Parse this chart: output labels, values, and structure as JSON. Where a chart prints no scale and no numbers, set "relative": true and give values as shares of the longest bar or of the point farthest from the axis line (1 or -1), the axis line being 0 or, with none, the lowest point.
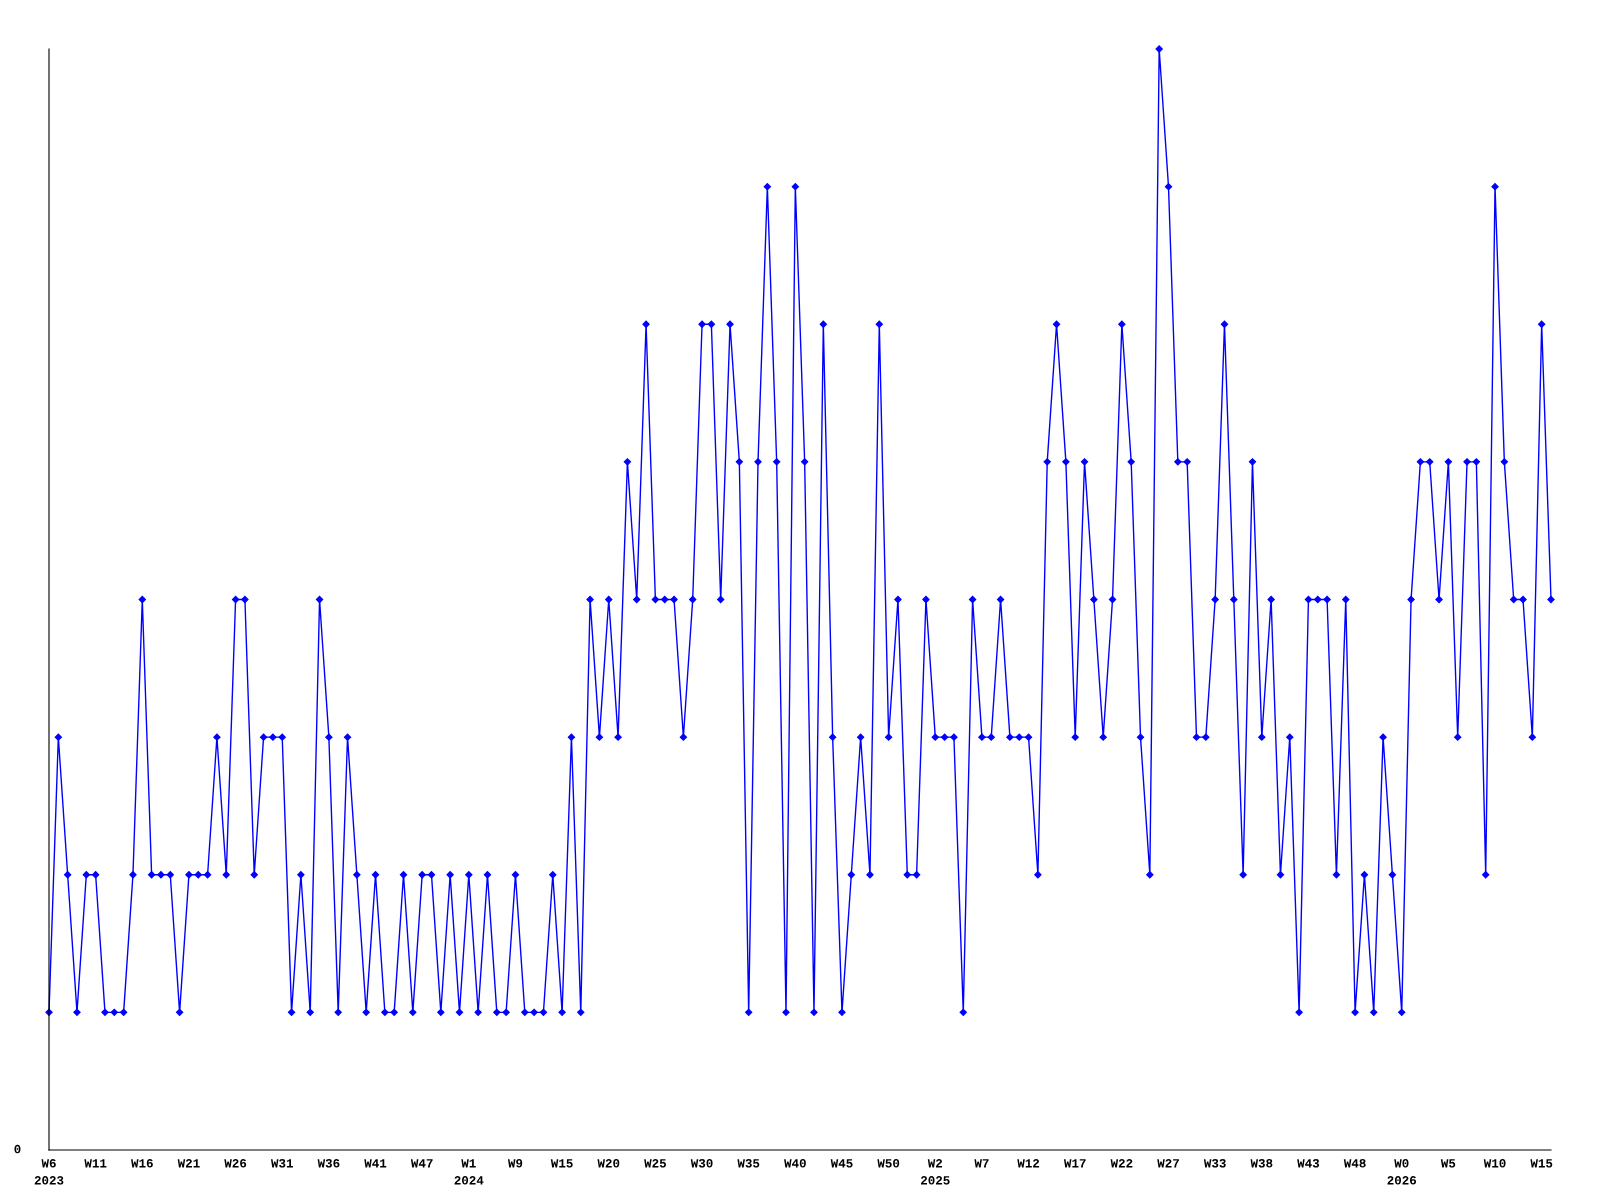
{
  "chart_data": {
    "type": "line",
    "relative": true,
    "marker": "diamond",
    "line_style": "solid",
    "grid": false,
    "legend": false,
    "annotations": [
      "0"
    ],
    "categories": [
      "W6\n2023",
      null,
      null,
      null,
      null,
      "W11",
      null,
      null,
      null,
      null,
      "W16",
      null,
      null,
      null,
      null,
      "W21",
      null,
      null,
      null,
      null,
      "W26",
      null,
      null,
      null,
      null,
      "W31",
      null,
      null,
      null,
      null,
      "W36",
      null,
      null,
      null,
      null,
      "W41",
      null,
      null,
      null,
      null,
      "W47",
      null,
      null,
      null,
      null,
      "W1\n2024",
      null,
      null,
      null,
      null,
      "W9",
      null,
      null,
      null,
      null,
      "W15",
      null,
      null,
      null,
      null,
      "W20",
      null,
      null,
      null,
      null,
      "W25",
      null,
      null,
      null,
      null,
      "W30",
      null,
      null,
      null,
      null,
      "W35",
      null,
      null,
      null,
      null,
      "W40",
      null,
      null,
      null,
      null,
      "W45",
      null,
      null,
      null,
      null,
      "W50",
      null,
      null,
      null,
      null,
      "W2\n2025",
      null,
      null,
      null,
      null,
      "W7",
      null,
      null,
      null,
      null,
      "W12",
      null,
      null,
      null,
      null,
      "W17",
      null,
      null,
      null,
      null,
      "W22",
      null,
      null,
      null,
      null,
      "W27",
      null,
      null,
      null,
      null,
      "W33",
      null,
      null,
      null,
      null,
      "W38",
      null,
      null,
      null,
      null,
      "W43",
      null,
      null,
      null,
      null,
      "W48",
      null,
      null,
      null,
      null,
      "W0\n2026",
      null,
      null,
      null,
      null,
      "W5",
      null,
      null,
      null,
      null,
      "W10",
      null,
      null,
      null,
      null,
      "W15",
      null
    ],
    "series": [
      {
        "color": "#0000ff",
        "values": [
          0.125,
          0.375,
          0.25,
          0.125,
          0.25,
          0.25,
          0.125,
          0.125,
          0.125,
          0.25,
          0.5,
          0.25,
          0.25,
          0.25,
          0.125,
          0.25,
          0.25,
          0.25,
          0.375,
          0.25,
          0.5,
          0.5,
          0.25,
          0.375,
          0.375,
          0.375,
          0.125,
          0.25,
          0.125,
          0.5,
          0.375,
          0.125,
          0.375,
          0.25,
          0.125,
          0.25,
          0.125,
          0.125,
          0.25,
          0.125,
          0.25,
          0.25,
          0.125,
          0.25,
          0.125,
          0.25,
          0.125,
          0.25,
          0.125,
          0.125,
          0.25,
          0.125,
          0.125,
          0.125,
          0.25,
          0.125,
          0.375,
          0.125,
          0.5,
          0.375,
          0.5,
          0.375,
          0.625,
          0.5,
          0.75,
          0.5,
          0.5,
          0.5,
          0.375,
          0.5,
          0.75,
          0.75,
          0.5,
          0.75,
          0.625,
          0.125,
          0.625,
          0.875,
          0.625,
          0.125,
          0.875,
          0.625,
          0.125,
          0.75,
          0.375,
          0.125,
          0.25,
          0.375,
          0.25,
          0.75,
          0.375,
          0.5,
          0.25,
          0.25,
          0.5,
          0.375,
          0.375,
          0.375,
          0.125,
          0.5,
          0.375,
          0.375,
          0.5,
          0.375,
          0.375,
          0.375,
          0.25,
          0.625,
          0.75,
          0.625,
          0.375,
          0.625,
          0.5,
          0.375,
          0.5,
          0.75,
          0.625,
          0.375,
          0.25,
          1,
          0.875,
          0.625,
          0.625,
          0.375,
          0.375,
          0.5,
          0.75,
          0.5,
          0.25,
          0.625,
          0.375,
          0.5,
          0.25,
          0.375,
          0.125,
          0.5,
          0.5,
          0.5,
          0.25,
          0.5,
          0.125,
          0.25,
          0.125,
          0.375,
          0.25,
          0.125,
          0.5,
          0.625,
          0.625,
          0.5,
          0.625,
          0.375,
          0.625,
          0.625,
          0.25,
          0.875,
          0.625,
          0.5,
          0.5,
          0.375,
          0.75,
          0.5
        ]
      }
    ]
  }
}
